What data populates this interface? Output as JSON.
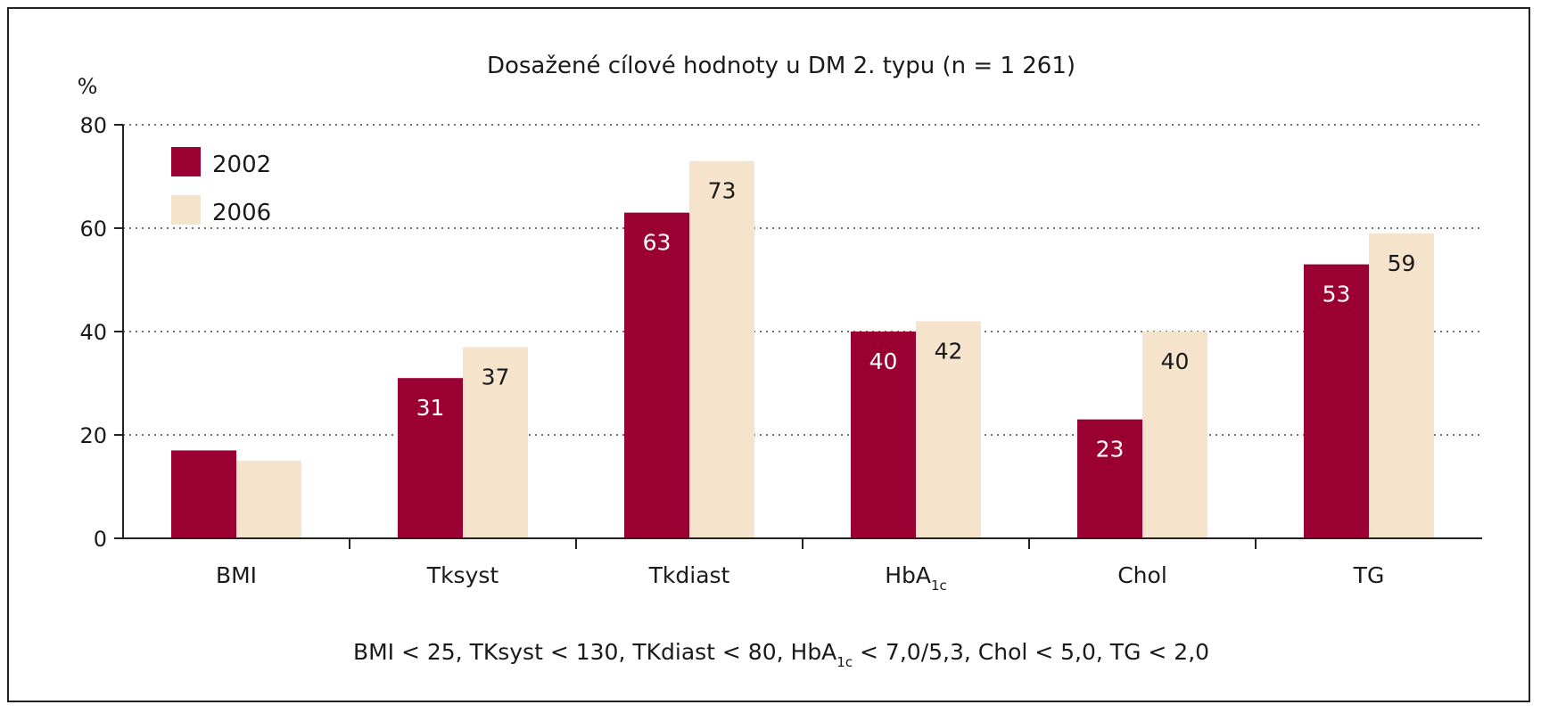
{
  "chart_data": {
    "type": "bar",
    "title": "Dosažené cílové hodnoty u DM 2. typu (n = 1 261)",
    "ylabel": "%",
    "xlabel": "",
    "ylim": [
      0,
      80
    ],
    "yticks": [
      0,
      20,
      40,
      60,
      80
    ],
    "grid": true,
    "legend_position": "top-left",
    "categories": [
      "BMI",
      "Tksyst",
      "Tkdiast",
      "HbA1c",
      "Chol",
      "TG"
    ],
    "series": [
      {
        "name": "2002",
        "color": "#9b0033",
        "values": [
          17,
          31,
          63,
          40,
          23,
          53
        ],
        "labels": [
          "",
          "31",
          "63",
          "40",
          "23",
          "53"
        ]
      },
      {
        "name": "2006",
        "color": "#f5e3cc",
        "values": [
          15,
          37,
          73,
          42,
          40,
          59
        ],
        "labels": [
          "",
          "37",
          "73",
          "42",
          "40",
          "59"
        ]
      }
    ],
    "footnote": "BMI < 25, TKsyst < 130, TKdiast < 80, HbA1c < 7,0/5,3, Chol < 5,0, TG < 2,0"
  }
}
